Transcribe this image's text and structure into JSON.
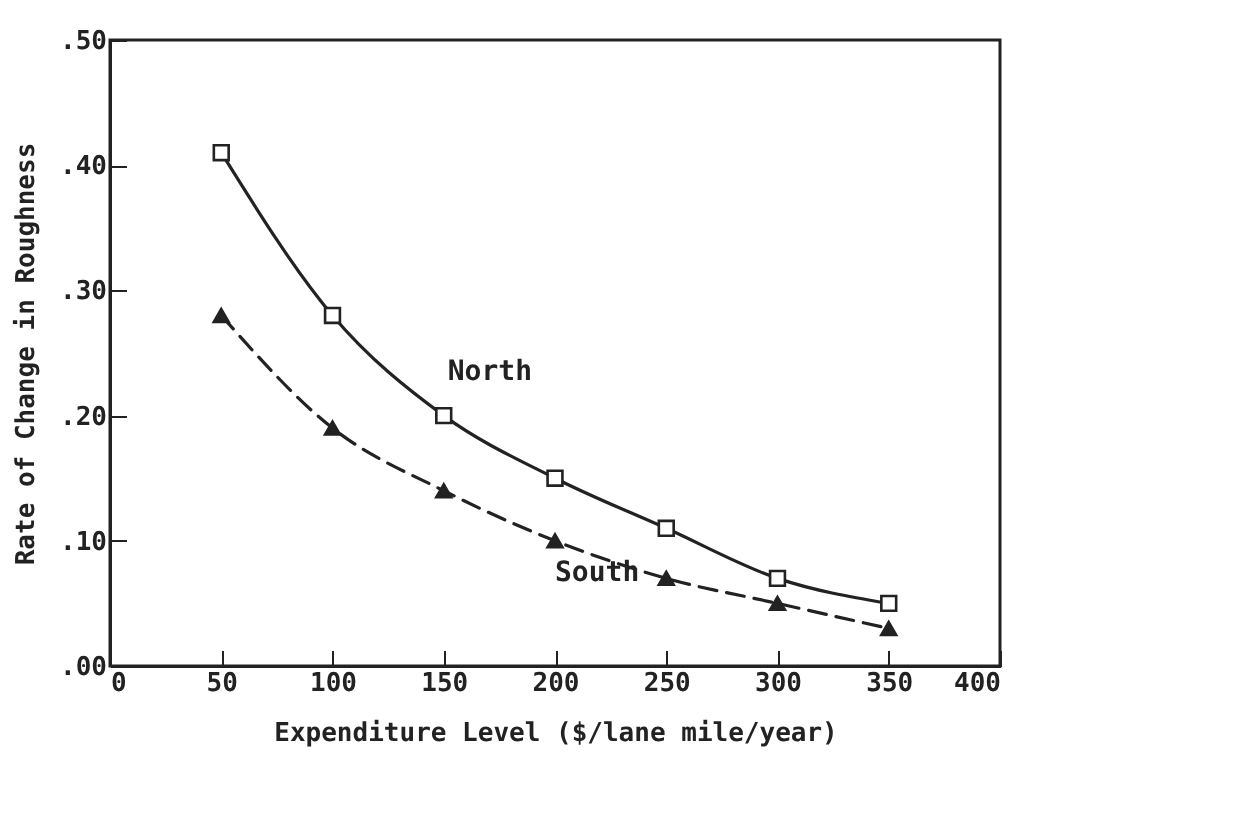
{
  "chart_data": {
    "type": "line",
    "xlabel": "Expenditure Level  ($/lane mile/year)",
    "ylabel": "Rate of Change in Roughness",
    "x": [
      50,
      100,
      150,
      200,
      250,
      300,
      350
    ],
    "series": [
      {
        "name": "North",
        "color": "#222222",
        "values": [
          0.41,
          0.28,
          0.2,
          0.15,
          0.11,
          0.07,
          0.05
        ],
        "marker": "square",
        "line_style": "solid"
      },
      {
        "name": "South",
        "color": "#222222",
        "values": [
          0.28,
          0.19,
          0.14,
          0.1,
          0.07,
          0.05,
          0.03
        ],
        "marker": "triangle",
        "line_style": "dashed"
      }
    ],
    "xlim": [
      0,
      400
    ],
    "xticks": [
      0,
      50,
      100,
      150,
      200,
      250,
      300,
      350,
      400
    ],
    "ylim": [
      0,
      0.5
    ],
    "yticks": [
      {
        "value": 0,
        "label": ".00"
      },
      {
        "value": 0.1,
        "label": ".10"
      },
      {
        "value": 0.2,
        "label": ".20"
      },
      {
        "value": 0.3,
        "label": ".30"
      },
      {
        "value": 0.4,
        "label": ".40"
      },
      {
        "value": 0.5,
        "label": ".50"
      }
    ],
    "grid": false,
    "legend": false
  }
}
